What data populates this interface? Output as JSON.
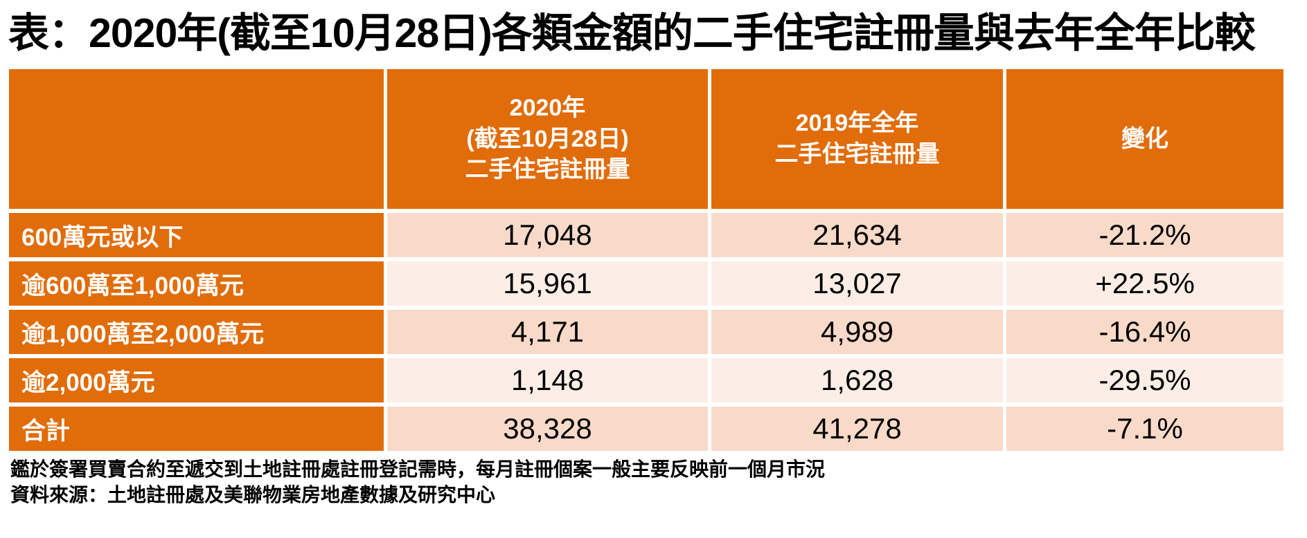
{
  "title": "表：2020年(截至10月28日)各類金額的二手住宅註冊量與去年全年比較",
  "colors": {
    "orange": "#E16C0A",
    "band_dark": "#F9DAC9",
    "band_light": "#FCEEE7"
  },
  "table": {
    "header": {
      "col1": "",
      "col2": {
        "line1": "2020年",
        "line2": "(截至10月28日)",
        "line3": "二手住宅註冊量"
      },
      "col3": {
        "line1": "2019年全年",
        "line2": "二手住宅註冊量"
      },
      "col4": "變化"
    },
    "rows": [
      {
        "label": "600萬元或以下",
        "y2020": "17,048",
        "y2019": "21,634",
        "change": "-21.2%"
      },
      {
        "label": "逾600萬至1,000萬元",
        "y2020": "15,961",
        "y2019": "13,027",
        "change": "+22.5%"
      },
      {
        "label": "逾1,000萬至2,000萬元",
        "y2020": "4,171",
        "y2019": "4,989",
        "change": "-16.4%"
      },
      {
        "label": "逾2,000萬元",
        "y2020": "1,148",
        "y2019": "1,628",
        "change": "-29.5%"
      },
      {
        "label": "合計",
        "y2020": "38,328",
        "y2019": "41,278",
        "change": "-7.1%"
      }
    ]
  },
  "notes": {
    "line1": "鑑於簽署買賣合約至遞交到土地註冊處註冊登記需時，每月註冊個案一般主要反映前一個月市況",
    "line2": "資料來源：土地註冊處及美聯物業房地產數據及研究中心"
  },
  "chart_data": {
    "type": "table",
    "title": "表：2020年(截至10月28日)各類金額的二手住宅註冊量與去年全年比較",
    "columns": [
      "",
      "2020年(截至10月28日)二手住宅註冊量",
      "2019年全年二手住宅註冊量",
      "變化"
    ],
    "rows": [
      [
        "600萬元或以下",
        17048,
        21634,
        "-21.2%"
      ],
      [
        "逾600萬至1,000萬元",
        15961,
        13027,
        "+22.5%"
      ],
      [
        "逾1,000萬至2,000萬元",
        4171,
        4989,
        "-16.4%"
      ],
      [
        "逾2,000萬元",
        1148,
        1628,
        "-29.5%"
      ],
      [
        "合計",
        38328,
        41278,
        "-7.1%"
      ]
    ],
    "notes": [
      "鑑於簽署買賣合約至遞交到土地註冊處註冊登記需時，每月註冊個案一般主要反映前一個月市況",
      "資料來源：土地註冊處及美聯物業房地產數據及研究中心"
    ]
  }
}
